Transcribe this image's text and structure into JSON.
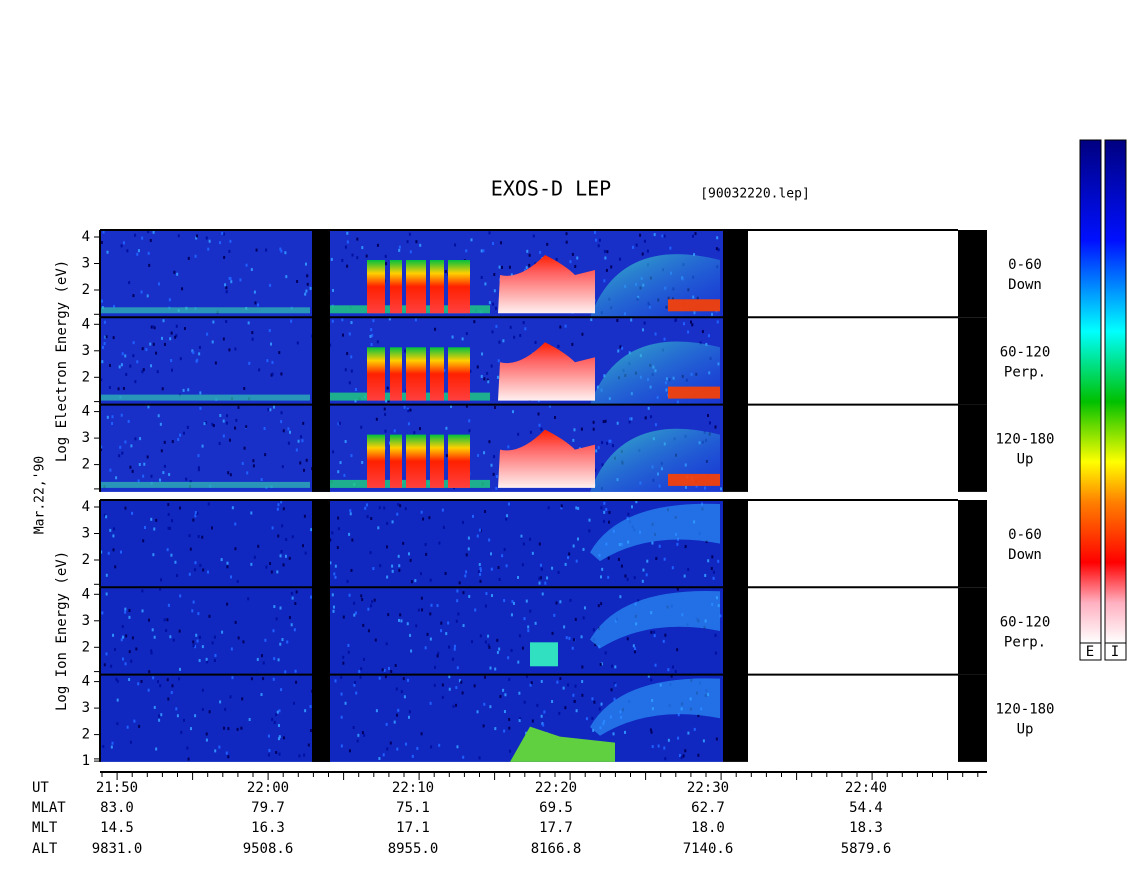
{
  "title": "EXOS-D LEP",
  "file": "[90032220.lep]",
  "date": "Mar.22,'90",
  "groups": [
    {
      "axis_label": "Log  Electron  Energy (eV)",
      "panels": [
        {
          "yticks": [
            4,
            3,
            2
          ],
          "angle": "0-60",
          "direction": "Down"
        },
        {
          "yticks": [
            4,
            3,
            2
          ],
          "angle": "60-120",
          "direction": "Perp."
        },
        {
          "yticks": [
            4,
            3,
            2
          ],
          "angle": "120-180",
          "direction": "Up"
        }
      ]
    },
    {
      "axis_label": "Log  Ion  Energy (eV)",
      "panels": [
        {
          "yticks": [
            4,
            3,
            2
          ],
          "angle": "0-60",
          "direction": "Down"
        },
        {
          "yticks": [
            4,
            3,
            2
          ],
          "angle": "60-120",
          "direction": "Perp."
        },
        {
          "yticks": [
            4,
            3,
            2,
            1
          ],
          "angle": "120-180",
          "direction": "Up"
        }
      ]
    }
  ],
  "orbit": {
    "row_labels": [
      "UT",
      "MLAT",
      "MLT",
      "ALT"
    ],
    "columns": [
      [
        "21:50",
        "83.0",
        "14.5",
        "9831.0"
      ],
      [
        "22:00",
        "79.7",
        "16.3",
        "9508.6"
      ],
      [
        "22:10",
        "75.1",
        "17.1",
        "8955.0"
      ],
      [
        "22:20",
        "69.5",
        "17.7",
        "8166.8"
      ],
      [
        "22:30",
        "62.7",
        "18.0",
        "7140.6"
      ],
      [
        "22:40",
        "54.4",
        "18.3",
        "5879.6"
      ]
    ]
  },
  "colorbars": [
    "E",
    "I"
  ]
}
